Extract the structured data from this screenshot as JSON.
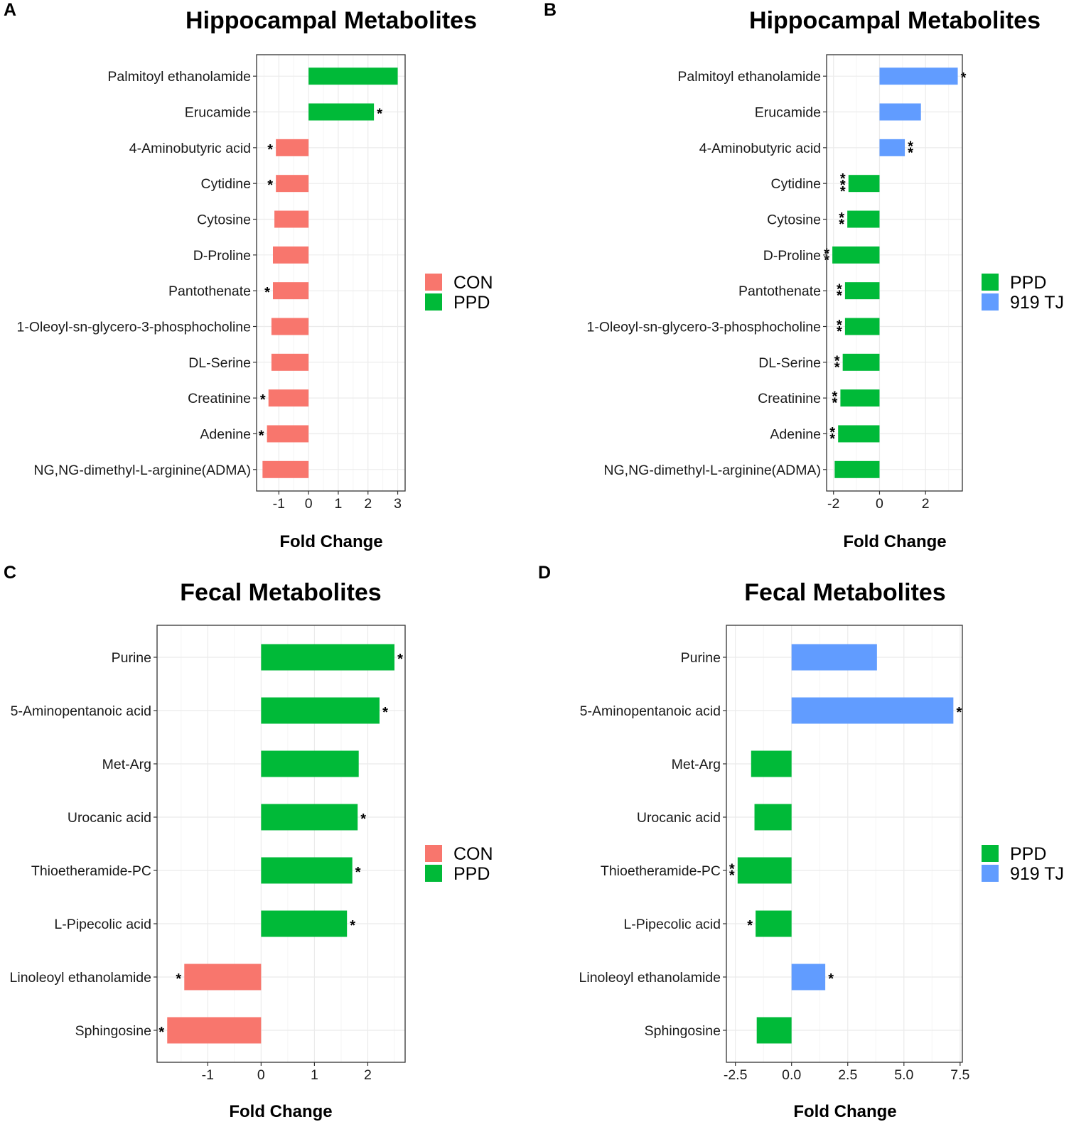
{
  "colors": {
    "CON": "#F8766D",
    "PPD": "#00BA38",
    "919 TJ": "#619CFF",
    "grid_major": "#EBEBEB",
    "grid_minor": "#F5F5F5",
    "text": "#000000",
    "axis_text": "#1A1A1A"
  },
  "chart_data": [
    {
      "type": "bar",
      "orientation": "horizontal",
      "panel_label": "A",
      "title": "Hippocampal Metabolites",
      "xlabel": "Fold Change",
      "xlim": [
        -1.75,
        3.25
      ],
      "xticks": [
        -1,
        0,
        1,
        2,
        3
      ],
      "xtick_labels": [
        "-1",
        "0",
        "1",
        "2",
        "3"
      ],
      "legend": {
        "position": "right",
        "entries": [
          "CON",
          "PPD"
        ]
      },
      "categories": [
        "Palmitoyl ethanolamide",
        "Erucamide",
        "4-Aminobutyric acid",
        "Cytidine",
        "Cytosine",
        "D-Proline",
        "Pantothenate",
        "1-Oleoyl-sn-glycero-3-phosphocholine",
        "DL-Serine",
        "Creatinine",
        "Adenine",
        "NG,NG-dimethyl-L-arginine(ADMA)"
      ],
      "values": [
        3.0,
        2.2,
        -1.1,
        -1.1,
        -1.15,
        -1.2,
        -1.2,
        -1.25,
        -1.25,
        -1.35,
        -1.4,
        -1.55
      ],
      "groups": [
        "PPD",
        "PPD",
        "CON",
        "CON",
        "CON",
        "CON",
        "CON",
        "CON",
        "CON",
        "CON",
        "CON",
        "CON"
      ],
      "significance": [
        "",
        "*",
        "*",
        "*",
        "",
        "",
        "*",
        "",
        "",
        "*",
        "*",
        ""
      ]
    },
    {
      "type": "bar",
      "orientation": "horizontal",
      "panel_label": "B",
      "title": "Hippocampal Metabolites",
      "xlabel": "Fold Change",
      "xlim": [
        -2.3,
        3.6
      ],
      "xticks": [
        -2,
        0,
        2
      ],
      "xtick_labels": [
        "-2",
        "0",
        "2"
      ],
      "legend": {
        "position": "right",
        "entries": [
          "PPD",
          "919 TJ"
        ]
      },
      "categories": [
        "Palmitoyl ethanolamide",
        "Erucamide",
        "4-Aminobutyric acid",
        "Cytidine",
        "Cytosine",
        "D-Proline",
        "Pantothenate",
        "1-Oleoyl-sn-glycero-3-phosphocholine",
        "DL-Serine",
        "Creatinine",
        "Adenine",
        "NG,NG-dimethyl-L-arginine(ADMA)"
      ],
      "values": [
        3.4,
        1.8,
        1.1,
        -1.35,
        -1.4,
        -2.05,
        -1.5,
        -1.5,
        -1.6,
        -1.7,
        -1.8,
        -1.95
      ],
      "groups": [
        "919 TJ",
        "919 TJ",
        "919 TJ",
        "PPD",
        "PPD",
        "PPD",
        "PPD",
        "PPD",
        "PPD",
        "PPD",
        "PPD",
        "PPD"
      ],
      "significance": [
        "*",
        "",
        "**",
        "***",
        "**",
        "**",
        "**",
        "**",
        "**",
        "**",
        "**",
        ""
      ]
    },
    {
      "type": "bar",
      "orientation": "horizontal",
      "panel_label": "C",
      "title": "Fecal Metabolites",
      "xlabel": "Fold Change",
      "xlim": [
        -1.95,
        2.7
      ],
      "xticks": [
        -1,
        0,
        1,
        2
      ],
      "xtick_labels": [
        "-1",
        "0",
        "1",
        "2"
      ],
      "legend": {
        "position": "right",
        "entries": [
          "CON",
          "PPD"
        ]
      },
      "categories": [
        "Purine",
        "5-Aminopentanoic acid",
        "Met-Arg",
        "Urocanic acid",
        "Thioetheramide-PC",
        "L-Pipecolic acid",
        "Linoleoyl ethanolamide",
        "Sphingosine"
      ],
      "values": [
        2.5,
        2.22,
        1.83,
        1.81,
        1.71,
        1.61,
        -1.44,
        -1.76
      ],
      "groups": [
        "PPD",
        "PPD",
        "PPD",
        "PPD",
        "PPD",
        "PPD",
        "CON",
        "CON"
      ],
      "significance": [
        "*",
        "*",
        "",
        "*",
        "*",
        "*",
        "*",
        "*"
      ]
    },
    {
      "type": "bar",
      "orientation": "horizontal",
      "panel_label": "D",
      "title": "Fecal Metabolites",
      "xlabel": "Fold Change",
      "xlim": [
        -2.9,
        7.6
      ],
      "xticks": [
        -2.5,
        0,
        2.5,
        5,
        7.5
      ],
      "xtick_labels": [
        "-2.5",
        "0.0",
        "2.5",
        "5.0",
        "7.5"
      ],
      "legend": {
        "position": "right",
        "entries": [
          "PPD",
          "919 TJ"
        ]
      },
      "categories": [
        "Purine",
        "5-Aminopentanoic acid",
        "Met-Arg",
        "Urocanic acid",
        "Thioetheramide-PC",
        "L-Pipecolic acid",
        "Linoleoyl ethanolamide",
        "Sphingosine"
      ],
      "values": [
        3.8,
        7.2,
        -1.8,
        -1.65,
        -2.4,
        -1.6,
        1.5,
        -1.55
      ],
      "groups": [
        "919 TJ",
        "919 TJ",
        "PPD",
        "PPD",
        "PPD",
        "PPD",
        "919 TJ",
        "PPD"
      ],
      "significance": [
        "",
        "*",
        "",
        "",
        "**",
        "*",
        "*",
        ""
      ]
    }
  ]
}
